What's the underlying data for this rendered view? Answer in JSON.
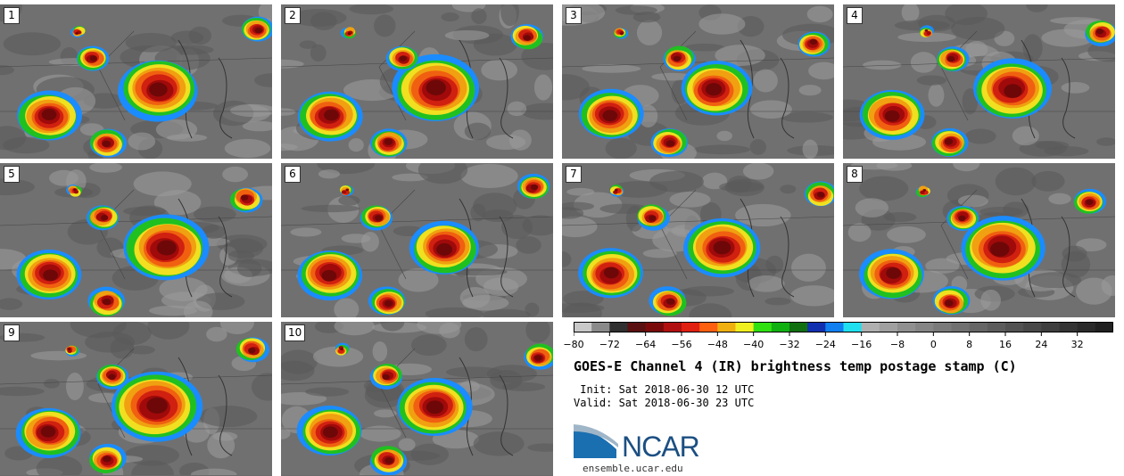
{
  "panels": [
    {
      "label": "1"
    },
    {
      "label": "2"
    },
    {
      "label": "3"
    },
    {
      "label": "4"
    },
    {
      "label": "5"
    },
    {
      "label": "6"
    },
    {
      "label": "7"
    },
    {
      "label": "8"
    },
    {
      "label": "9"
    },
    {
      "label": "10"
    }
  ],
  "colorbar": {
    "ticks": [
      "−80",
      "−72",
      "−64",
      "−56",
      "−48",
      "−40",
      "−32",
      "−24",
      "−16",
      "−8",
      "0",
      "8",
      "16",
      "24",
      "32"
    ],
    "colors": [
      "#c8c8c8",
      "#8a8a8a",
      "#303030",
      "#5a1010",
      "#7a0a0a",
      "#b01010",
      "#e02010",
      "#ff6010",
      "#f0b010",
      "#f0f020",
      "#30e010",
      "#10b010",
      "#107010",
      "#1030b0",
      "#1080f0",
      "#20e0f0",
      "#b0b0b0",
      "#a0a0a0",
      "#909090",
      "#858585",
      "#7a7a7a",
      "#707070",
      "#666666",
      "#5c5c5c",
      "#525252",
      "#484848",
      "#3e3e3e",
      "#343434",
      "#2a2a2a",
      "#202020"
    ]
  },
  "title": "GOES-E Channel 4 (IR) brightness temp postage stamp (C)",
  "init": " Init: Sat 2018-06-30 12 UTC",
  "valid": "Valid: Sat 2018-06-30 23 UTC",
  "logo": {
    "name": "NCAR",
    "site": "ensemble.ucar.edu"
  }
}
